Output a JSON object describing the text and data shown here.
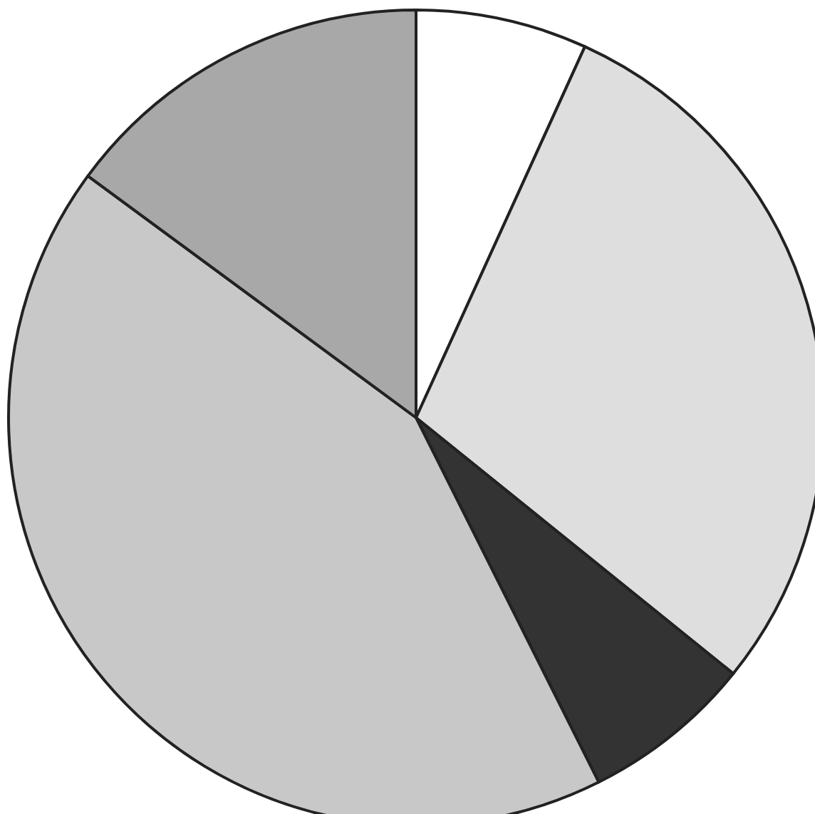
{
  "chart_data": {
    "type": "pie",
    "categories": [
      null,
      null,
      null,
      null,
      null
    ],
    "values": [
      6.8,
      29.0,
      6.8,
      42.5,
      14.9
    ],
    "colors": [
      "#ffffff",
      "#dedede",
      "#333333",
      "#c8c8c8",
      "#a8a8a8"
    ]
  }
}
